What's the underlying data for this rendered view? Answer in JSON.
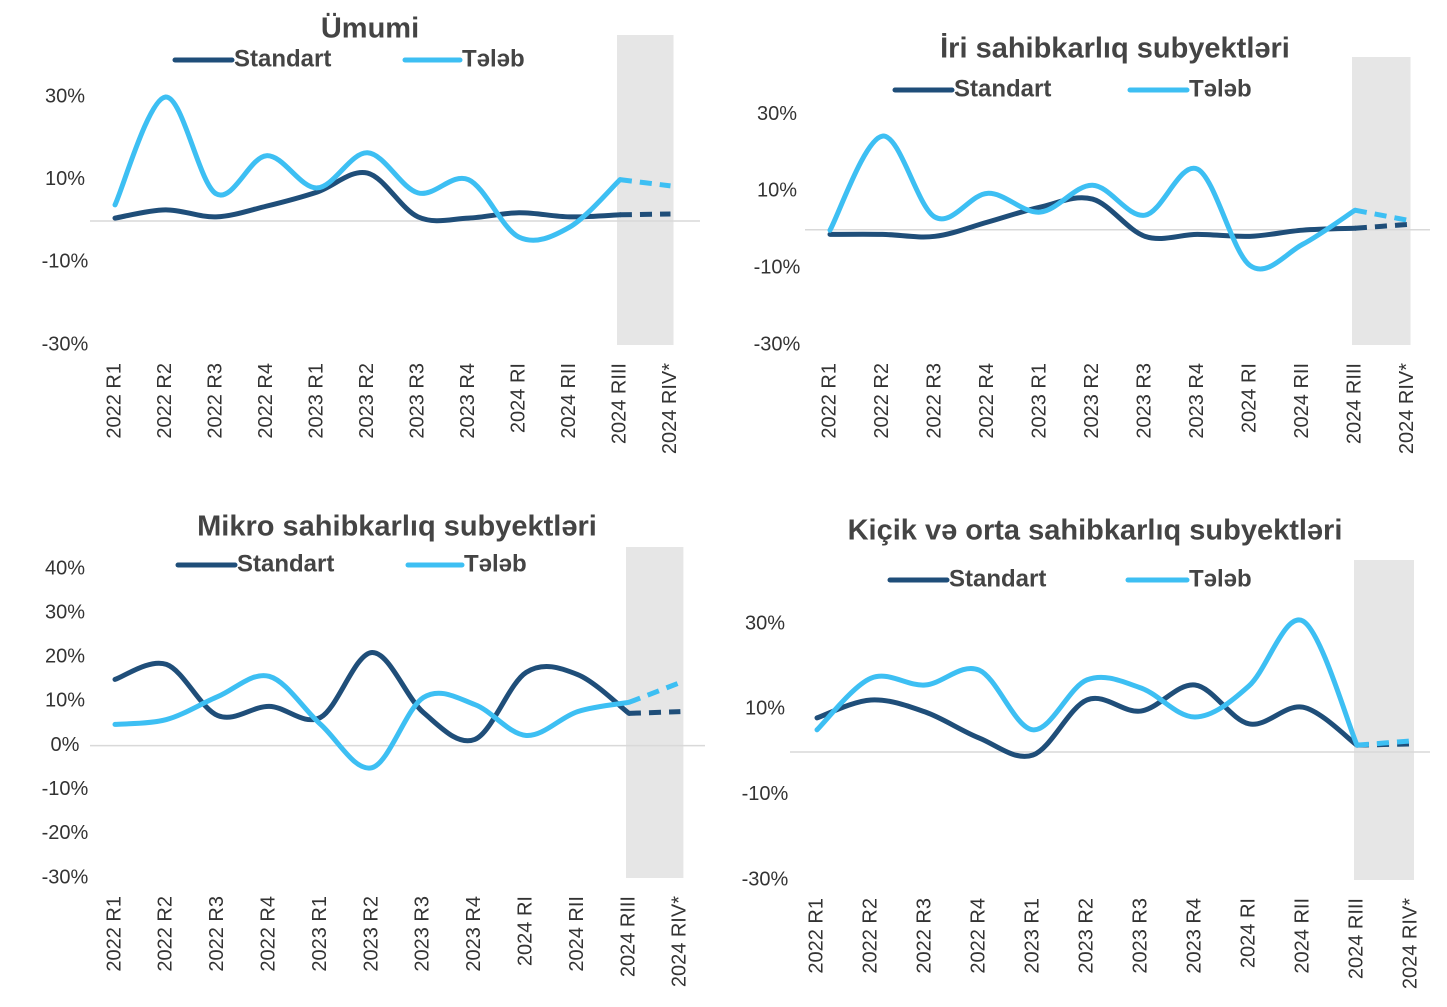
{
  "chart_data": [
    {
      "type": "line",
      "title": "Ümumi",
      "categories": [
        "2022 R1",
        "2022 R2",
        "2022 R3",
        "2022 R4",
        "2023 R1",
        "2023 R2",
        "2023 R3",
        "2023 R4",
        "2024 RI",
        "2024 RII",
        "2024 RIII",
        "2024 RIV*"
      ],
      "series": [
        {
          "name": "Standart",
          "color": "#1f4e79",
          "values": [
            0.7,
            2.7,
            1,
            3.6,
            7,
            11.6,
            1,
            0.7,
            2,
            1,
            1.5,
            1.7
          ]
        },
        {
          "name": "Tələb",
          "color": "#3dbff3",
          "values": [
            3.9,
            30,
            6.6,
            15.8,
            8,
            16.5,
            6.8,
            10,
            -3.9,
            -1.5,
            10,
            8.5
          ]
        }
      ],
      "ylim": [
        -30,
        45
      ],
      "yticks": [
        {
          "value": -30,
          "label": "-30%"
        },
        {
          "value": -10,
          "label": "-10%"
        },
        {
          "value": 10,
          "label": "10%"
        },
        {
          "value": 30,
          "label": "30%"
        }
      ]
    },
    {
      "type": "line",
      "title": "İri sahibkarlıq subyektləri",
      "categories": [
        "2022 R1",
        "2022 R2",
        "2022 R3",
        "2022 R4",
        "2023 R1",
        "2023 R2",
        "2023 R3",
        "2023 R4",
        "2024 RI",
        "2024 RII",
        "2024 RIII",
        "2024 RIV*"
      ],
      "series": [
        {
          "name": "Standart",
          "color": "#1f4e79",
          "values": [
            -1.2,
            -1.2,
            -1.7,
            2,
            5.9,
            8,
            -1.7,
            -1.2,
            -1.7,
            -0.1,
            0.4,
            1.4
          ]
        },
        {
          "name": "Tələb",
          "color": "#3dbff3",
          "values": [
            -0.1,
            24.4,
            3.3,
            9.5,
            4.6,
            11.6,
            3.8,
            15.8,
            -9.3,
            -3.8,
            5.1,
            2.5
          ]
        }
      ],
      "ylim": [
        -30,
        45
      ],
      "yticks": [
        {
          "value": -30,
          "label": "-30%"
        },
        {
          "value": -10,
          "label": "-10%"
        },
        {
          "value": 10,
          "label": "10%"
        },
        {
          "value": 30,
          "label": "30%"
        }
      ]
    },
    {
      "type": "line",
      "title": "Mikro sahibkarlıq subyektləri",
      "categories": [
        "2022 R1",
        "2022 R2",
        "2022 R3",
        "2022 R4",
        "2023 R1",
        "2023 R2",
        "2023 R3",
        "2023 R4",
        "2024 RI",
        "2024 RII",
        "2024 RIII",
        "2024 RIV*"
      ],
      "series": [
        {
          "name": "Standart",
          "color": "#1f4e79",
          "values": [
            15,
            18.4,
            6.8,
            8.9,
            6.4,
            21.1,
            7.5,
            1.4,
            16.6,
            16.1,
            7.3,
            7.7
          ]
        },
        {
          "name": "Tələb",
          "color": "#3dbff3",
          "values": [
            4.8,
            5.9,
            11.1,
            15.7,
            4.8,
            -5,
            10.9,
            9.3,
            2.3,
            7.7,
            9.8,
            14.3
          ]
        }
      ],
      "ylim": [
        -30,
        45
      ],
      "yticks": [
        {
          "value": -30,
          "label": "-30%"
        },
        {
          "value": -20,
          "label": "-20%"
        },
        {
          "value": -10,
          "label": "-10%"
        },
        {
          "value": 0,
          "label": "0%"
        },
        {
          "value": 10,
          "label": "10%"
        },
        {
          "value": 20,
          "label": "20%"
        },
        {
          "value": 30,
          "label": "30%"
        },
        {
          "value": 40,
          "label": "40%"
        }
      ]
    },
    {
      "type": "line",
      "title": "Kiçik və orta sahibkarlıq subyektləri",
      "categories": [
        "2022 R1",
        "2022 R2",
        "2022 R3",
        "2022 R4",
        "2023 R1",
        "2023 R2",
        "2023 R3",
        "2023 R4",
        "2024 RI",
        "2024 RII",
        "2024 RIII",
        "2024 RIV*"
      ],
      "series": [
        {
          "name": "Standart",
          "color": "#1f4e79",
          "values": [
            8,
            12.2,
            9.4,
            3.3,
            -0.7,
            12.2,
            9.6,
            15.7,
            6.6,
            10.5,
            1.6,
            1.9
          ]
        },
        {
          "name": "Tələb",
          "color": "#3dbff3",
          "values": [
            5.2,
            17.3,
            15.7,
            19.2,
            5.2,
            16.9,
            15,
            8.2,
            15.5,
            30.7,
            1.6,
            2.6
          ]
        }
      ],
      "ylim": [
        -30,
        45
      ],
      "yticks": [
        {
          "value": -30,
          "label": "-30%"
        },
        {
          "value": -10,
          "label": "-10%"
        },
        {
          "value": 10,
          "label": "10%"
        },
        {
          "value": 30,
          "label": "30%"
        }
      ]
    }
  ]
}
